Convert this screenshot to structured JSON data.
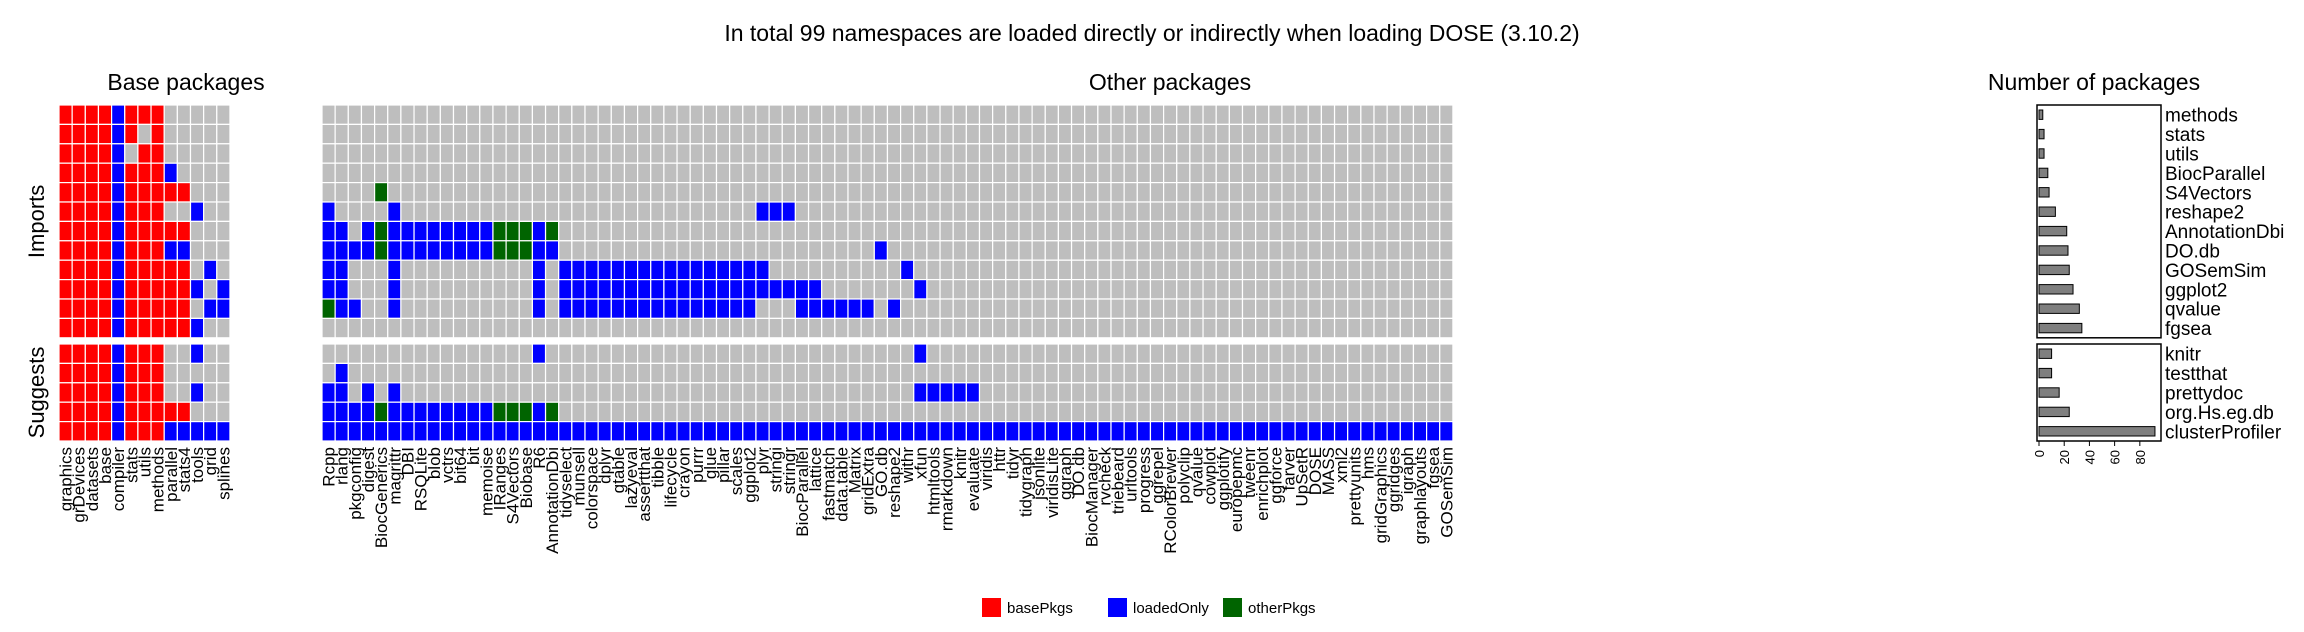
{
  "chart_data": {
    "type": "heatmap",
    "title": "In total 99 namespaces are loaded directly or indirectly when loading DOSE (3.10.2)",
    "panel_titles": {
      "base": "Base packages",
      "other": "Other packages",
      "count": "Number of packages"
    },
    "row_group_labels": [
      "Imports",
      "Suggests"
    ],
    "base_columns": [
      "graphics",
      "grDevices",
      "datasets",
      "base",
      "compiler",
      "stats",
      "utils",
      "methods",
      "parallel",
      "stats4",
      "tools",
      "grid",
      "splines"
    ],
    "other_columns": [
      "Rcpp",
      "rlang",
      "pkgconfig",
      "digest",
      "BiocGenerics",
      "magrittr",
      "DBI",
      "RSQLite",
      "blob",
      "vctrs",
      "bit64",
      "bit",
      "memoise",
      "IRanges",
      "S4Vectors",
      "Biobase",
      "R6",
      "AnnotationDbi",
      "tidyselect",
      "munsell",
      "colorspace",
      "dplyr",
      "gtable",
      "lazyeval",
      "assertthat",
      "tibble",
      "lifecycle",
      "crayon",
      "purrr",
      "glue",
      "pillar",
      "scales",
      "ggplot2",
      "plyr",
      "stringi",
      "stringr",
      "BiocParallel",
      "lattice",
      "fastmatch",
      "data.table",
      "Matrix",
      "gridExtra",
      "GO.db",
      "reshape2",
      "withr",
      "xfun",
      "htmltools",
      "rmarkdown",
      "knitr",
      "evaluate",
      "viridis",
      "httr",
      "tidyr",
      "tidygraph",
      "jsonlite",
      "viridisLite",
      "ggraph",
      "DO.db",
      "BiocManager",
      "rvcheck",
      "triebeard",
      "urltools",
      "progress",
      "ggrepel",
      "RColorBrewer",
      "polyclip",
      "qvalue",
      "cowplot",
      "ggplotify",
      "europepmc",
      "tweenr",
      "enrichplot",
      "ggforce",
      "farver",
      "UpSetR",
      "DOSE",
      "MASS",
      "xml2",
      "prettyunits",
      "hms",
      "gridGraphics",
      "ggridges",
      "igraph",
      "graphlayouts",
      "fgsea",
      "GOSemSim"
    ],
    "rows": [
      {
        "name": "methods",
        "group": "Imports",
        "count": 3,
        "base": "RRRRLRRR",
        "other": ""
      },
      {
        "name": "stats",
        "group": "Imports",
        "count": 4,
        "base": "RRRRLR.R",
        "other": ""
      },
      {
        "name": "utils",
        "group": "Imports",
        "count": 4,
        "base": "RRRRL.RR",
        "other": ""
      },
      {
        "name": "BiocParallel",
        "group": "Imports",
        "count": 7,
        "base": "RRRRLRRRL",
        "other": ""
      },
      {
        "name": "S4Vectors",
        "group": "Imports",
        "count": 8,
        "base": "RRRRLRRRRR",
        "other": "....O"
      },
      {
        "name": "reshape2",
        "group": "Imports",
        "count": 13,
        "base": "RRRRLRRR..L",
        "other": "L....L...........................LLL"
      },
      {
        "name": "AnnotationDbi",
        "group": "Imports",
        "count": 22,
        "base": "RRRRLRRRRR",
        "other": "LL.LOLLLLLLLLOOOLO"
      },
      {
        "name": "DO.db",
        "group": "Imports",
        "count": 23,
        "base": "RRRRLRRRLL",
        "other": "LLLLOLLLLLLLLOOOLL........................L"
      },
      {
        "name": "GOSemSim",
        "group": "Imports",
        "count": 24,
        "base": "RRRRLRRRRR.L",
        "other": "LL...L..........L.LLLLLLLLLLLLLLLL..........L"
      },
      {
        "name": "ggplot2",
        "group": "Imports",
        "count": 27,
        "base": "RRRRLRRRRRL.L",
        "other": "LL...L..........L.LLLLLLLLLLLLLLLLLLLL.......L"
      },
      {
        "name": "qvalue",
        "group": "Imports",
        "count": 32,
        "base": "RRRRLRRRRR.LL",
        "other": "OLL..L..........L.LLLLLLLLLLLLLLL...LLLLLL.L"
      },
      {
        "name": "fgsea",
        "group": "Imports",
        "count": 34,
        "base": "RRRRLRRRRRL",
        "other": ""
      },
      {
        "name": "knitr",
        "group": "Suggests",
        "count": 10,
        "base": "RRRRLRRR..L",
        "other": "................L............................L"
      },
      {
        "name": "testthat",
        "group": "Suggests",
        "count": 10,
        "base": "RRRRLRRR",
        "other": ".L"
      },
      {
        "name": "prettydoc",
        "group": "Suggests",
        "count": 16,
        "base": "RRRRLRRR..L",
        "other": "LL.L.L.......................................LLLLL"
      },
      {
        "name": "org.Hs.eg.db",
        "group": "Suggests",
        "count": 24,
        "base": "RRRRLRRRRR",
        "other": "LLLLOLLLLLLLLOOOLO"
      },
      {
        "name": "clusterProfiler",
        "group": "Suggests",
        "count": 92,
        "base": "RRRRLRRRLLLLL",
        "other": "LLLLLLLLLLLLLLLLLLLLLLLLLLLLLLLLLLLLLLLLLLLLLLLLLLLLLLLLLLLLLLLLLLLLLLLLLLLLLLLLLLLLLL"
      }
    ],
    "count_axis": {
      "ticks": [
        0,
        20,
        40,
        60,
        80
      ],
      "max": 96
    },
    "colors": {
      "R": "#ff0000",
      "L": "#0000ff",
      "O": "#006400",
      "empty": "#bebebe",
      "bar": "#7f7f7f",
      "background": "#ffffff"
    },
    "legend": [
      {
        "code": "R",
        "label": "basePkgs"
      },
      {
        "code": "L",
        "label": "loadedOnly"
      },
      {
        "code": "O",
        "label": "otherPkgs"
      }
    ]
  }
}
